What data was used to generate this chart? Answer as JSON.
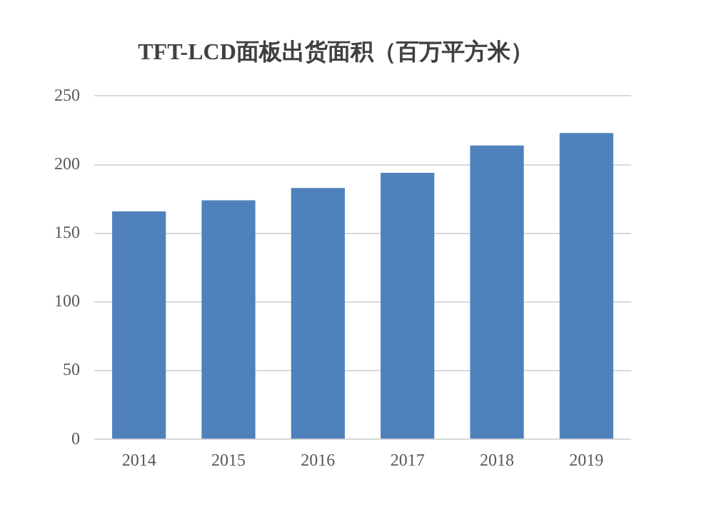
{
  "chart_data": {
    "type": "bar",
    "title": "TFT-LCD面板出货面积（百万平方米）",
    "categories": [
      "2014",
      "2015",
      "2016",
      "2017",
      "2018",
      "2019"
    ],
    "values": [
      166,
      174,
      183,
      194,
      214,
      223
    ],
    "color": "#4f81bd",
    "ylim": [
      0,
      250
    ],
    "yticks": [
      0,
      50,
      100,
      150,
      200,
      250
    ],
    "grid": "y"
  }
}
